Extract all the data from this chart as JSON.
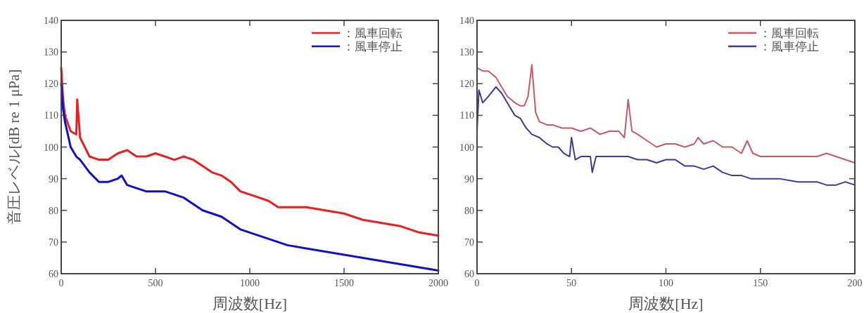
{
  "chart_data": [
    {
      "type": "line",
      "xlabel": "周波数[Hz]",
      "ylabel": "音圧レベル[dB re 1 μPa]",
      "xlim": [
        0,
        2000
      ],
      "ylim": [
        60,
        140
      ],
      "xticks": [
        0,
        500,
        1000,
        1500,
        2000
      ],
      "yticks": [
        60,
        70,
        80,
        90,
        100,
        110,
        120,
        130,
        140
      ],
      "legend": "top right",
      "grid": false,
      "series": [
        {
          "name": "：風車回転",
          "color": "#e8201e",
          "x": [
            0,
            10,
            20,
            50,
            80,
            85,
            100,
            150,
            200,
            250,
            300,
            350,
            400,
            450,
            500,
            550,
            600,
            650,
            700,
            750,
            800,
            850,
            900,
            950,
            1000,
            1100,
            1150,
            1200,
            1300,
            1400,
            1500,
            1600,
            1700,
            1800,
            1900,
            2000
          ],
          "values": [
            125,
            115,
            110,
            105,
            104,
            115,
            103,
            97,
            96,
            96,
            98,
            99,
            97,
            97,
            98,
            97,
            96,
            97,
            96,
            94,
            92,
            91,
            89,
            86,
            85,
            83,
            81,
            81,
            81,
            80,
            79,
            77,
            76,
            75,
            73,
            72
          ]
        },
        {
          "name": "：風車停止",
          "color": "#1010c8",
          "x": [
            0,
            10,
            20,
            50,
            80,
            100,
            150,
            200,
            250,
            300,
            320,
            350,
            400,
            450,
            500,
            550,
            600,
            650,
            700,
            750,
            800,
            850,
            900,
            950,
            1000,
            1100,
            1200,
            1300,
            1400,
            1500,
            1600,
            1700,
            1800,
            1900,
            2000
          ],
          "values": [
            120,
            112,
            108,
            100,
            97,
            96,
            92,
            89,
            89,
            90,
            91,
            88,
            87,
            86,
            86,
            86,
            85,
            84,
            82,
            80,
            79,
            78,
            76,
            74,
            73,
            71,
            69,
            68,
            67,
            66,
            65,
            64,
            63,
            62,
            61
          ]
        }
      ]
    },
    {
      "type": "line",
      "xlabel": "周波数[Hz]",
      "xlim": [
        0,
        200
      ],
      "ylim": [
        60,
        140
      ],
      "xticks": [
        0,
        50,
        100,
        150,
        200
      ],
      "yticks": [
        60,
        70,
        80,
        90,
        100,
        110,
        120,
        130,
        140
      ],
      "legend": "top right",
      "grid": false,
      "series": [
        {
          "name": "：風車回転",
          "color": "#c85a64",
          "x": [
            0,
            3,
            6,
            8,
            10,
            13,
            16,
            20,
            23,
            25,
            27,
            29,
            31,
            33,
            37,
            40,
            45,
            50,
            55,
            60,
            65,
            70,
            75,
            78,
            80,
            82,
            85,
            90,
            95,
            100,
            105,
            110,
            115,
            117,
            120,
            125,
            130,
            135,
            140,
            143,
            146,
            150,
            160,
            170,
            180,
            185,
            190,
            195,
            200
          ],
          "values": [
            125,
            124,
            124,
            123,
            122,
            119,
            116,
            114,
            113,
            113,
            116,
            126,
            111,
            108,
            107,
            107,
            106,
            106,
            105,
            106,
            104,
            105,
            105,
            103,
            115,
            105,
            104,
            102,
            100,
            101,
            101,
            100,
            101,
            103,
            101,
            102,
            100,
            100,
            98,
            102,
            98,
            97,
            97,
            97,
            97,
            98,
            97,
            96,
            95
          ]
        },
        {
          "name": "：風車停止",
          "color": "#3a3a9a",
          "x": [
            0,
            1,
            3,
            6,
            10,
            13,
            16,
            20,
            23,
            26,
            29,
            33,
            37,
            40,
            43,
            46,
            49,
            50,
            52,
            55,
            60,
            61,
            63,
            70,
            80,
            85,
            90,
            95,
            100,
            105,
            110,
            115,
            120,
            125,
            130,
            135,
            140,
            145,
            150,
            160,
            170,
            180,
            185,
            190,
            195,
            200
          ],
          "values": [
            105,
            118,
            114,
            116,
            119,
            117,
            114,
            110,
            109,
            106,
            104,
            103,
            101,
            100,
            100,
            98,
            97,
            103,
            96,
            97,
            97,
            92,
            97,
            97,
            97,
            96,
            96,
            95,
            96,
            96,
            94,
            94,
            93,
            94,
            92,
            91,
            91,
            90,
            90,
            90,
            89,
            89,
            88,
            88,
            89,
            88
          ]
        }
      ]
    }
  ]
}
